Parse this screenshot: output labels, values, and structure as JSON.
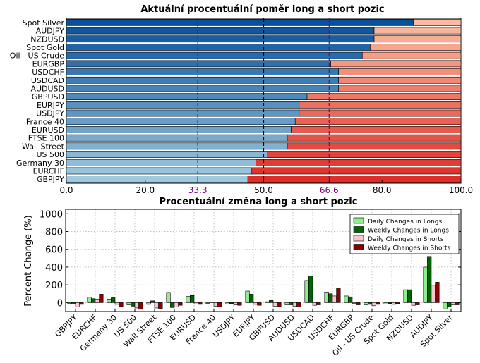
{
  "chart_data": [
    {
      "type": "bar",
      "orientation": "horizontal",
      "stacked": true,
      "title": "Aktuální procentuální poměr long a short pozic",
      "categories": [
        "Spot Silver",
        "AUDJPY",
        "NZDUSD",
        "Spot Gold",
        "Oil - US Crude",
        "EURGBP",
        "USDCHF",
        "USDCAD",
        "AUDUSD",
        "GBPUSD",
        "EURJPY",
        "USDJPY",
        "France 40",
        "EURUSD",
        "FTSE 100",
        "Wall Street",
        "US 500",
        "Germany 30",
        "EURCHF",
        "GBPJPY"
      ],
      "series": [
        {
          "values": [
            88,
            78,
            78,
            77,
            75,
            67,
            69,
            69,
            69,
            61,
            59,
            59,
            58,
            57,
            56,
            56,
            51,
            48,
            47,
            46
          ]
        },
        {
          "values": [
            12,
            22,
            22,
            23,
            25,
            33,
            31,
            31,
            31,
            39,
            41,
            41,
            42,
            43,
            44,
            44,
            49,
            52,
            53,
            54
          ]
        }
      ],
      "xlim": [
        0,
        100
      ],
      "xticks": [
        "0.0",
        "20.0",
        "33.3",
        "50.0",
        "66.6",
        "80.0",
        "100.0"
      ],
      "xtick_values": [
        0,
        20,
        33.3,
        50,
        66.6,
        80,
        100
      ],
      "reference_lines": [
        33.3,
        50,
        66.6
      ],
      "colors": {
        "long_dark": "#08519c",
        "long_light": "#9ecae1",
        "short_light": "#fcbba1",
        "short_dark": "#de2d26",
        "ref_purple": "#7a0177",
        "ref_black": "#000000",
        "tick_purple": "#7a0177"
      }
    },
    {
      "type": "bar",
      "title": "Procentuální změna long a short pozic",
      "ylabel": "Percent Change (%)",
      "categories": [
        "GBPJPY",
        "EURCHF",
        "Germany 30",
        "US 500",
        "Wall Street",
        "FTSE 100",
        "EURUSD",
        "France 40",
        "USDJPY",
        "EURJPY",
        "GBPUSD",
        "AUDUSD",
        "USDCAD",
        "USDCHF",
        "EURGBP",
        "Oil - US Crude",
        "Spot Gold",
        "NZDUSD",
        "AUDJPY",
        "Spot Silver"
      ],
      "series": [
        {
          "name": "Daily Changes in Longs",
          "color": "#90ee90",
          "values": [
            -10,
            60,
            40,
            -25,
            -20,
            115,
            70,
            -10,
            -15,
            130,
            10,
            -25,
            250,
            120,
            75,
            -25,
            -15,
            145,
            400,
            -70
          ]
        },
        {
          "name": "Weekly Changes in Longs",
          "color": "#006400",
          "values": [
            -15,
            45,
            55,
            -40,
            20,
            -55,
            80,
            5,
            -10,
            95,
            25,
            -25,
            300,
            100,
            65,
            -20,
            -10,
            145,
            520,
            -45
          ]
        },
        {
          "name": "Daily Changes in Shorts",
          "color": "#f8c8d0",
          "values": [
            -50,
            40,
            -20,
            -60,
            -60,
            -50,
            -15,
            -40,
            -25,
            -20,
            -40,
            -40,
            -30,
            75,
            -10,
            -35,
            -20,
            -30,
            195,
            -25
          ]
        },
        {
          "name": "Weekly Changes in Shorts",
          "color": "#8b0000",
          "values": [
            -20,
            95,
            -45,
            -75,
            -70,
            -30,
            -20,
            -50,
            -30,
            -30,
            -50,
            -50,
            -25,
            165,
            -25,
            -20,
            -10,
            -25,
            230,
            -25
          ]
        }
      ],
      "ylim": [
        -100,
        1050
      ],
      "yticks": [
        0,
        200,
        400,
        600,
        800,
        1000
      ],
      "grid": true,
      "legend": "top-right"
    }
  ]
}
